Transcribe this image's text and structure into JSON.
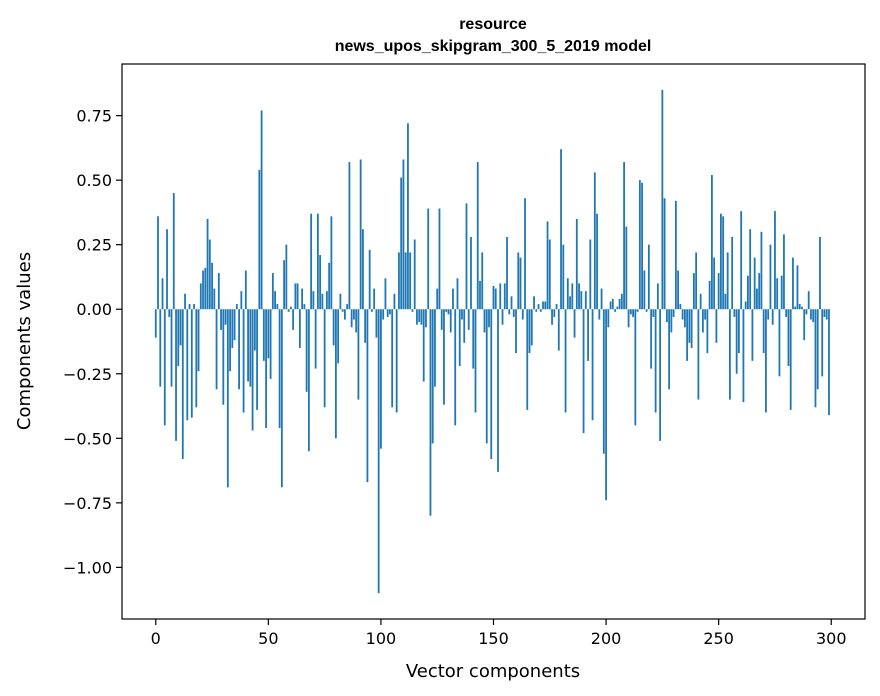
{
  "chart_data": {
    "type": "bar",
    "title_lines": [
      "resource",
      "news_upos_skipgram_300_5_2019 model"
    ],
    "xlabel": "Vector components",
    "ylabel": "Components values",
    "xlim": [
      -15,
      315
    ],
    "ylim": [
      -1.2,
      0.95
    ],
    "x_ticks": [
      0,
      50,
      100,
      150,
      200,
      250,
      300
    ],
    "x_tick_labels": [
      "0",
      "50",
      "100",
      "150",
      "200",
      "250",
      "300"
    ],
    "y_ticks": [
      -1.0,
      -0.75,
      -0.5,
      -0.25,
      0.0,
      0.25,
      0.5,
      0.75
    ],
    "y_tick_labels": [
      "−1.00",
      "−0.75",
      "−0.50",
      "−0.25",
      "0.00",
      "0.25",
      "0.50",
      "0.75"
    ],
    "grid": false,
    "bar_color": "#1f77b4",
    "series": [
      {
        "x_start": 0,
        "values": [
          -0.11,
          0.36,
          -0.3,
          0.12,
          -0.45,
          0.31,
          -0.03,
          -0.3,
          0.45,
          -0.51,
          -0.22,
          -0.14,
          -0.58,
          0.06,
          -0.43,
          0.02,
          -0.42,
          0.02,
          -0.38,
          -0.24,
          0.1,
          0.15,
          0.16,
          0.35,
          0.27,
          0.18,
          0.08,
          -0.31,
          0.14,
          -0.08,
          -0.37,
          -0.06,
          -0.69,
          -0.24,
          -0.15,
          -0.12,
          0.02,
          -0.31,
          0.07,
          -0.4,
          0.15,
          -0.28,
          -0.3,
          -0.47,
          -0.16,
          -0.39,
          0.54,
          0.77,
          -0.2,
          -0.46,
          -0.19,
          -0.27,
          0.14,
          0.07,
          0.02,
          -0.46,
          -0.69,
          0.19,
          0.25,
          -0.01,
          0.01,
          -0.08,
          0.1,
          0.1,
          -0.15,
          0.08,
          0.02,
          -0.32,
          -0.55,
          0.37,
          0.07,
          -0.23,
          0.37,
          0.21,
          0.06,
          -0.38,
          0.07,
          0.18,
          0.36,
          -0.14,
          -0.5,
          -0.21,
          0.06,
          -0.01,
          -0.04,
          0.02,
          0.57,
          -0.07,
          -0.04,
          -0.09,
          -0.35,
          0.58,
          0.31,
          -0.13,
          -0.67,
          0.23,
          -0.01,
          0.08,
          -0.11,
          -1.1,
          -0.54,
          -0.04,
          0.12,
          -0.03,
          -0.02,
          -0.38,
          0.06,
          -0.4,
          0.22,
          0.51,
          0.58,
          0.22,
          0.72,
          0.22,
          -0.01,
          0.27,
          -0.06,
          -0.05,
          -0.06,
          -0.28,
          -0.07,
          0.39,
          -0.8,
          -0.52,
          -0.3,
          0.08,
          0.39,
          -0.08,
          -0.37,
          -0.01,
          -0.02,
          -0.09,
          0.08,
          -0.45,
          0.12,
          -0.22,
          -0.04,
          -0.13,
          0.41,
          -0.08,
          0.28,
          -0.23,
          -0.4,
          0.57,
          0.11,
          0.22,
          -0.09,
          -0.52,
          -0.07,
          -0.58,
          0.09,
          0.08,
          -0.63,
          0.1,
          -0.06,
          0.1,
          0.28,
          -0.02,
          0.05,
          -0.03,
          -0.17,
          0.22,
          0.2,
          -0.04,
          0.43,
          -0.39,
          -0.17,
          -0.14,
          0.05,
          -0.01,
          0.02,
          -0.01,
          0.03,
          0.03,
          0.34,
          0.27,
          -0.06,
          -0.03,
          0.02,
          -0.16,
          0.62,
          0.25,
          -0.4,
          0.12,
          0.05,
          0.1,
          -0.11,
          0.35,
          0.1,
          0.07,
          -0.48,
          0.07,
          -0.2,
          0.27,
          -0.43,
          0.53,
          0.37,
          -0.04,
          0.08,
          -0.56,
          -0.74,
          -0.07,
          0.03,
          0.04,
          -0.01,
          0.01,
          0.04,
          0.06,
          0.57,
          0.32,
          -0.07,
          -0.02,
          -0.03,
          -0.45,
          -0.01,
          0.5,
          0.49,
          0.15,
          -0.01,
          0.25,
          -0.23,
          -0.03,
          -0.4,
          0.1,
          -0.51,
          0.85,
          0.43,
          -0.05,
          -0.31,
          -0.09,
          -0.03,
          0.42,
          0.15,
          0.02,
          -0.04,
          -0.07,
          -0.2,
          -0.13,
          -0.15,
          0.14,
          0.22,
          -0.35,
          0.06,
          -0.09,
          -0.04,
          -0.17,
          0.11,
          0.52,
          0.2,
          -0.13,
          0.14,
          0.37,
          0.36,
          0.06,
          0.22,
          -0.35,
          0.28,
          -0.03,
          -0.25,
          -0.17,
          0.38,
          -0.36,
          0.03,
          0.13,
          0.31,
          -0.2,
          0.2,
          0.08,
          0.14,
          0.3,
          -0.17,
          -0.4,
          -0.04,
          0.25,
          -0.06,
          0.38,
          0.12,
          -0.26,
          0.13,
          0.29,
          -0.03,
          -0.22,
          -0.39,
          0.2,
          0.01,
          0.17,
          0.02,
          0.01,
          -0.12,
          -0.02,
          0.07,
          -0.04,
          -0.05,
          -0.38,
          -0.31,
          0.28,
          -0.26,
          -0.03,
          -0.04,
          -0.41
        ]
      }
    ]
  }
}
